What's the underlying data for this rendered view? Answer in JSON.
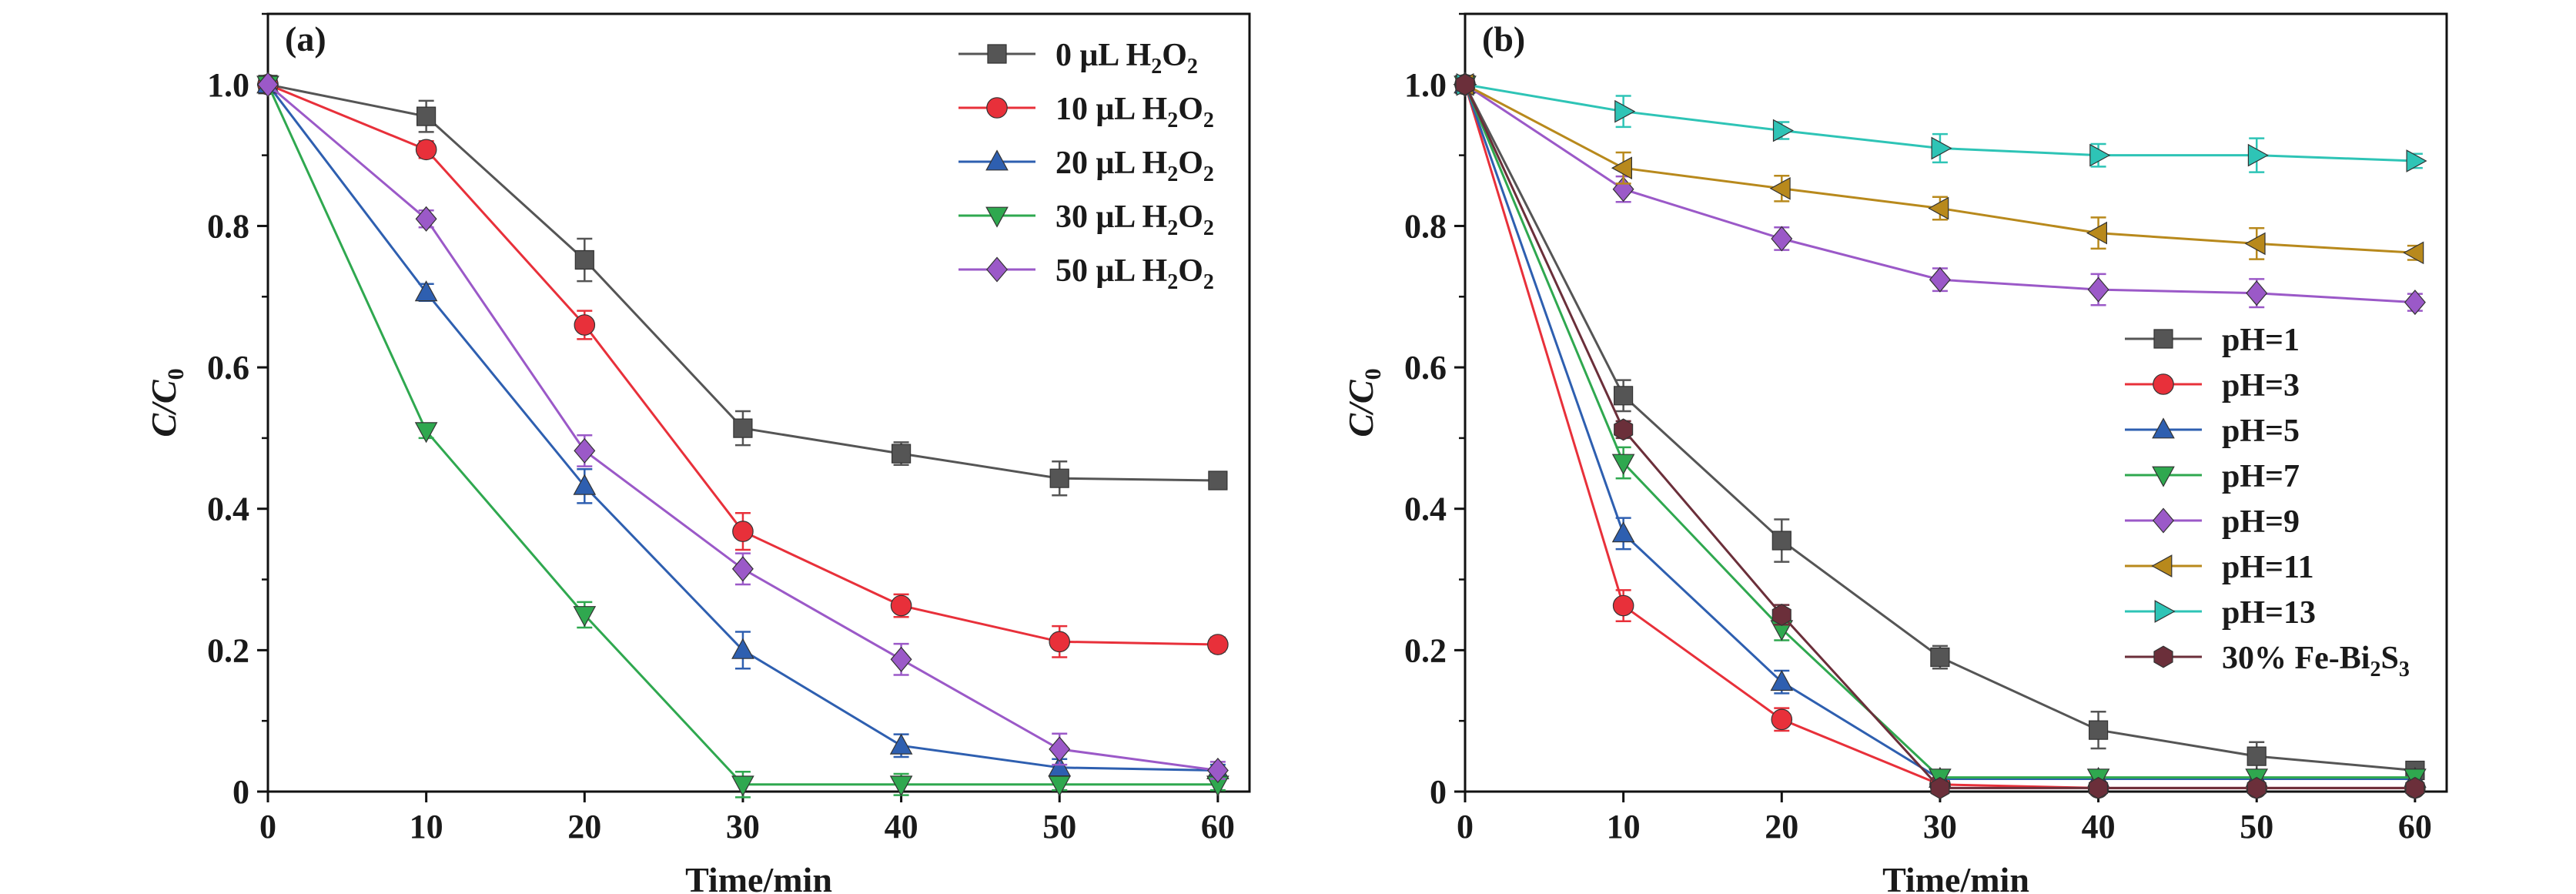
{
  "chart_data": [
    {
      "type": "line",
      "panel_label": "(a)",
      "xlabel": "Time/min",
      "ylabel": "C/C0",
      "ylabel_parts": {
        "main": "C/C",
        "sub": "0"
      },
      "xlim": [
        0,
        62
      ],
      "ylim": [
        0,
        1.1
      ],
      "xticks": [
        0,
        10,
        20,
        30,
        40,
        50,
        60
      ],
      "yticks": [
        0,
        0.2,
        0.4,
        0.6,
        0.8,
        1.0
      ],
      "ytick_labels": [
        "0",
        "0.2",
        "0.4",
        "0.6",
        "0.8",
        "1.0"
      ],
      "legend_position": "top-right",
      "x": [
        0,
        10,
        20,
        30,
        40,
        50,
        60
      ],
      "series": [
        {
          "name": "0 μL H2O2",
          "label_main": "0 μL H",
          "label_parts": [
            "2",
            "O",
            "2"
          ],
          "color": "#555555",
          "marker": "square",
          "values": [
            1.0,
            0.955,
            0.752,
            0.514,
            0.478,
            0.443,
            0.44
          ],
          "errors": [
            0,
            0.022,
            0.03,
            0.024,
            0.016,
            0.024,
            0.01
          ]
        },
        {
          "name": "10 μL H2O2",
          "label_main": "10 μL H",
          "label_parts": [
            "2",
            "O",
            "2"
          ],
          "color": "#e8303a",
          "marker": "circle",
          "values": [
            1.0,
            0.908,
            0.66,
            0.368,
            0.263,
            0.212,
            0.208
          ],
          "errors": [
            0,
            0.012,
            0.02,
            0.026,
            0.016,
            0.022,
            0.01
          ]
        },
        {
          "name": "20 μL H2O2",
          "label_main": "20 μL H",
          "label_parts": [
            "2",
            "O",
            "2"
          ],
          "color": "#2e5fb0",
          "marker": "triangle-up",
          "values": [
            1.0,
            0.706,
            0.432,
            0.2,
            0.065,
            0.034,
            0.03
          ],
          "errors": [
            0,
            0.012,
            0.024,
            0.026,
            0.016,
            0.012,
            0.008
          ]
        },
        {
          "name": "30 μL H2O2",
          "label_main": "30 μL H",
          "label_parts": [
            "2",
            "O",
            "2"
          ],
          "color": "#2fa84f",
          "marker": "triangle-down",
          "values": [
            1.0,
            0.51,
            0.25,
            0.01,
            0.01,
            0.01,
            0.01
          ],
          "errors": [
            0,
            0.01,
            0.018,
            0.018,
            0.015,
            0.008,
            0.008
          ]
        },
        {
          "name": "50 μL H2O2",
          "label_main": "50 μL H",
          "label_parts": [
            "2",
            "O",
            "2"
          ],
          "color": "#9b59c8",
          "marker": "diamond",
          "values": [
            1.0,
            0.81,
            0.482,
            0.315,
            0.187,
            0.06,
            0.03
          ],
          "errors": [
            0,
            0.012,
            0.022,
            0.022,
            0.022,
            0.022,
            0.012
          ]
        }
      ]
    },
    {
      "type": "line",
      "panel_label": "(b)",
      "xlabel": "Time/min",
      "ylabel": "C/C0",
      "ylabel_parts": {
        "main": "C/C",
        "sub": "0"
      },
      "xlim": [
        0,
        62
      ],
      "ylim": [
        0,
        1.1
      ],
      "xticks": [
        0,
        10,
        20,
        30,
        40,
        50,
        60
      ],
      "yticks": [
        0,
        0.2,
        0.4,
        0.6,
        0.8,
        1.0
      ],
      "ytick_labels": [
        "0",
        "0.2",
        "0.4",
        "0.6",
        "0.8",
        "1.0"
      ],
      "legend_position": "center-right",
      "x": [
        0,
        10,
        20,
        30,
        40,
        50,
        60
      ],
      "series": [
        {
          "name": "pH=1",
          "label_main": "pH=1",
          "label_parts": [],
          "color": "#555555",
          "marker": "square",
          "values": [
            1.0,
            0.56,
            0.355,
            0.19,
            0.087,
            0.05,
            0.03
          ],
          "errors": [
            0,
            0.022,
            0.03,
            0.016,
            0.026,
            0.02,
            0.008
          ]
        },
        {
          "name": "pH=3",
          "label_main": "pH=3",
          "label_parts": [],
          "color": "#e8303a",
          "marker": "circle",
          "values": [
            1.0,
            0.263,
            0.102,
            0.01,
            0.005,
            0.005,
            0.005
          ],
          "errors": [
            0,
            0.022,
            0.016,
            0.008,
            0.008,
            0.008,
            0.008
          ]
        },
        {
          "name": "pH=5",
          "label_main": "pH=5",
          "label_parts": [],
          "color": "#2e5fb0",
          "marker": "triangle-up",
          "values": [
            1.0,
            0.365,
            0.155,
            0.018,
            0.018,
            0.018,
            0.018
          ],
          "errors": [
            0,
            0.022,
            0.016,
            0.008,
            0.008,
            0.008,
            0.008
          ]
        },
        {
          "name": "pH=7",
          "label_main": "pH=7",
          "label_parts": [],
          "color": "#2fa84f",
          "marker": "triangle-down",
          "values": [
            1.0,
            0.465,
            0.23,
            0.02,
            0.02,
            0.02,
            0.02
          ],
          "errors": [
            0,
            0.022,
            0.016,
            0.008,
            0.008,
            0.008,
            0.008
          ]
        },
        {
          "name": "pH=9",
          "label_main": "pH=9",
          "label_parts": [],
          "color": "#9b59c8",
          "marker": "diamond",
          "values": [
            1.0,
            0.852,
            0.782,
            0.724,
            0.71,
            0.705,
            0.692
          ],
          "errors": [
            0,
            0.018,
            0.016,
            0.016,
            0.022,
            0.02,
            0.012
          ]
        },
        {
          "name": "pH=11",
          "label_main": "pH=11",
          "label_parts": [],
          "color": "#b8891c",
          "marker": "triangle-left",
          "values": [
            1.0,
            0.882,
            0.853,
            0.825,
            0.79,
            0.775,
            0.762
          ],
          "errors": [
            0,
            0.022,
            0.018,
            0.016,
            0.022,
            0.022,
            0.01
          ]
        },
        {
          "name": "pH=13",
          "label_main": "pH=13",
          "label_parts": [],
          "color": "#2ec4b6",
          "marker": "triangle-right",
          "values": [
            1.0,
            0.962,
            0.935,
            0.91,
            0.9,
            0.9,
            0.892
          ],
          "errors": [
            0,
            0.022,
            0.012,
            0.02,
            0.016,
            0.024,
            0.01
          ]
        },
        {
          "name": "30% Fe-Bi2S3",
          "label_main": "30% Fe-Bi",
          "label_parts": [
            "2",
            "S",
            "3"
          ],
          "color": "#6b2f3a",
          "marker": "hexagon",
          "values": [
            1.0,
            0.512,
            0.25,
            0.005,
            0.005,
            0.005,
            0.005
          ],
          "errors": [
            0,
            0.012,
            0.014,
            0.008,
            0.008,
            0.008,
            0.008
          ]
        }
      ]
    }
  ]
}
